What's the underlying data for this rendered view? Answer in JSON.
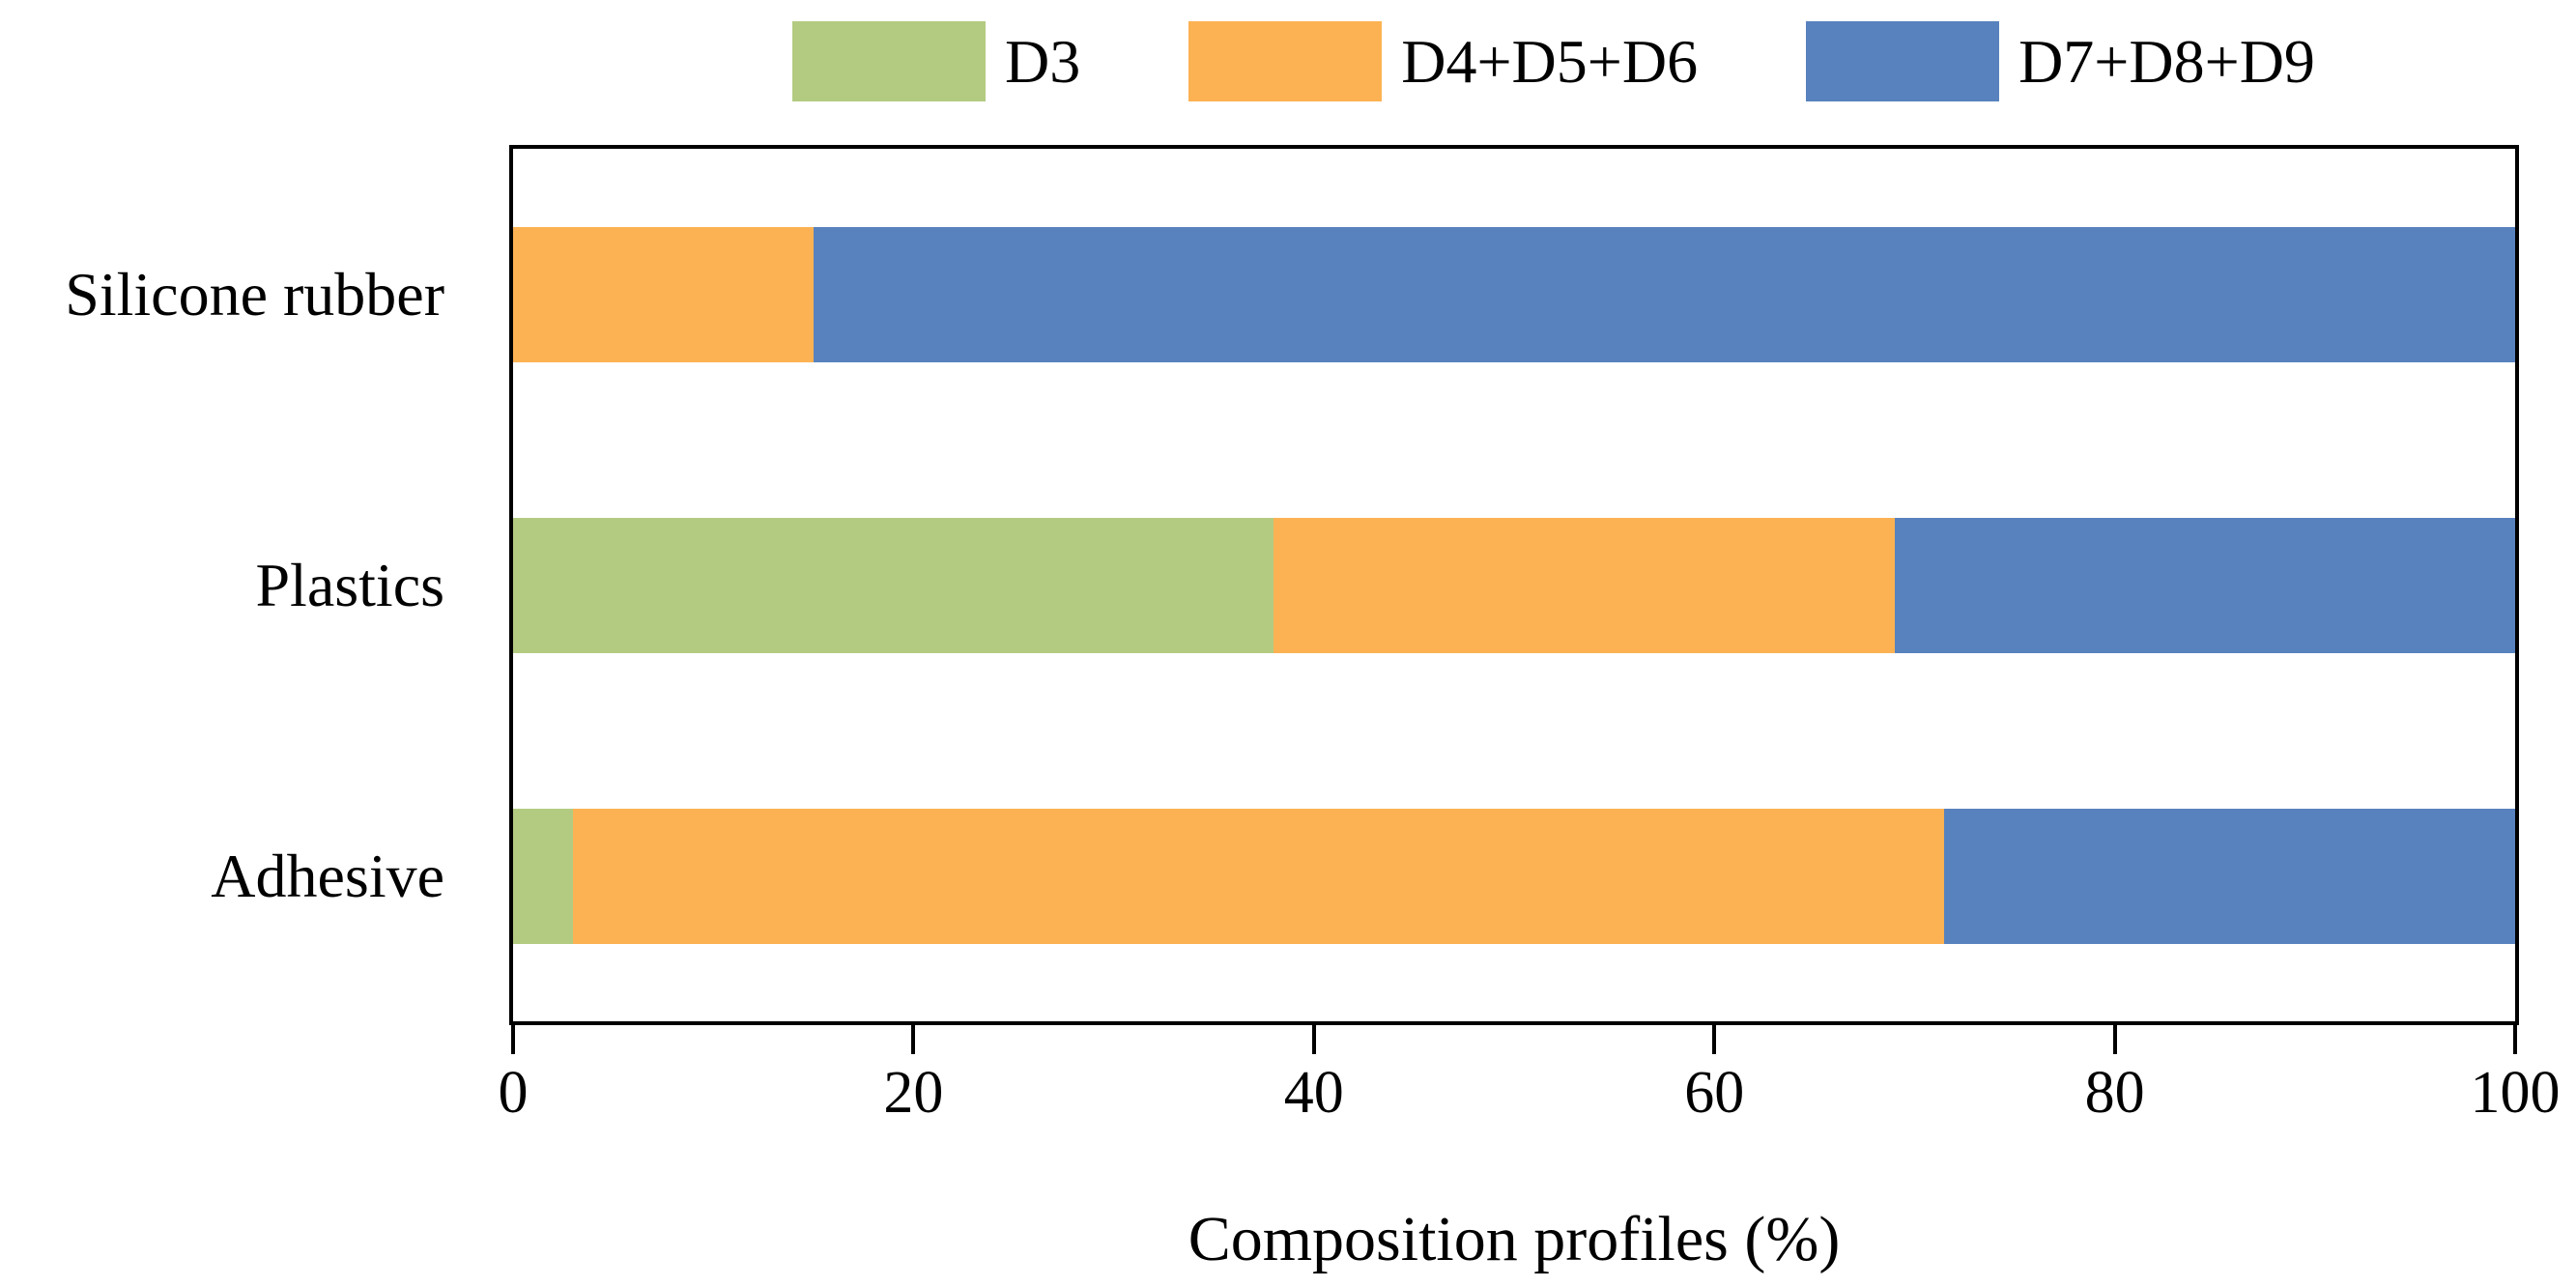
{
  "chart_data": {
    "type": "bar",
    "orientation": "horizontal",
    "stacked": true,
    "title": "",
    "xlabel": "Composition profiles (%)",
    "ylabel": "",
    "categories": [
      "Silicone rubber",
      "Plastics",
      "Adhesive"
    ],
    "series": [
      {
        "name": "D3",
        "color": "#b3cb81",
        "values": [
          0,
          38,
          3
        ]
      },
      {
        "name": "D4+D5+D6",
        "color": "#fcb253",
        "values": [
          15,
          31,
          68.5
        ]
      },
      {
        "name": "D7+D8+D9",
        "color": "#5882be",
        "values": [
          85,
          31,
          28.5
        ]
      }
    ],
    "xlim": [
      0,
      100
    ],
    "x_ticks": [
      0,
      20,
      40,
      60,
      80,
      100
    ],
    "grid": false,
    "legend_position": "top",
    "plot_border_color": "#000000",
    "background_color": "#ffffff"
  }
}
